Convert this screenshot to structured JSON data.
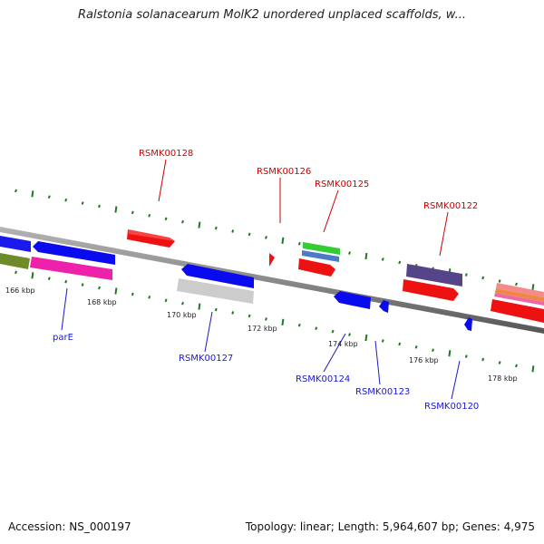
{
  "title": "Ralstonia solanacearum MolK2 unordered unplaced scaffolds, w...",
  "footer": {
    "accession": "Accession: NS_000197",
    "topology": "Topology: linear; Length: 5,964,607 bp; Genes: 4,975"
  },
  "colors": {
    "backbone": "#8a8a8a",
    "tick": "#1e7a1e",
    "label_top": "#cc0000",
    "label_bottom": "#1a1acc"
  },
  "ticks": [
    {
      "label": "166 kbp",
      "kbp": 166
    },
    {
      "label": "168 kbp",
      "kbp": 168
    },
    {
      "label": "170 kbp",
      "kbp": 170
    },
    {
      "label": "172 kbp",
      "kbp": 172
    },
    {
      "label": "174 kbp",
      "kbp": 174
    },
    {
      "label": "176 kbp",
      "kbp": 176
    },
    {
      "label": "178 kbp",
      "kbp": 178
    }
  ],
  "gene_labels_top": [
    "RSMK00128",
    "RSMK00126",
    "RSMK00125",
    "RSMK00122"
  ],
  "gene_labels_bottom": [
    "parE",
    "RSMK00127",
    "RSMK00124",
    "RSMK00123",
    "RSMK00120"
  ],
  "features": [
    {
      "name": "parE",
      "strand": "reverse",
      "color": "#0000ee"
    },
    {
      "name": "RSMK00128",
      "strand": "forward",
      "color": "#ee0000"
    },
    {
      "name": "RSMK00127",
      "strand": "reverse",
      "color": "#0000ee"
    },
    {
      "name": "RSMK00126",
      "strand": "forward",
      "color": "#ee0000"
    },
    {
      "name": "RSMK00125",
      "strand": "forward",
      "color": "#ee0000"
    },
    {
      "name": "RSMK00124",
      "strand": "reverse",
      "color": "#0000ee"
    },
    {
      "name": "RSMK00123",
      "strand": "reverse",
      "color": "#0000ee"
    },
    {
      "name": "RSMK00122",
      "strand": "forward",
      "color": "#ee0000"
    },
    {
      "name": "RSMK00120",
      "strand": "reverse",
      "color": "#0000ee"
    }
  ]
}
